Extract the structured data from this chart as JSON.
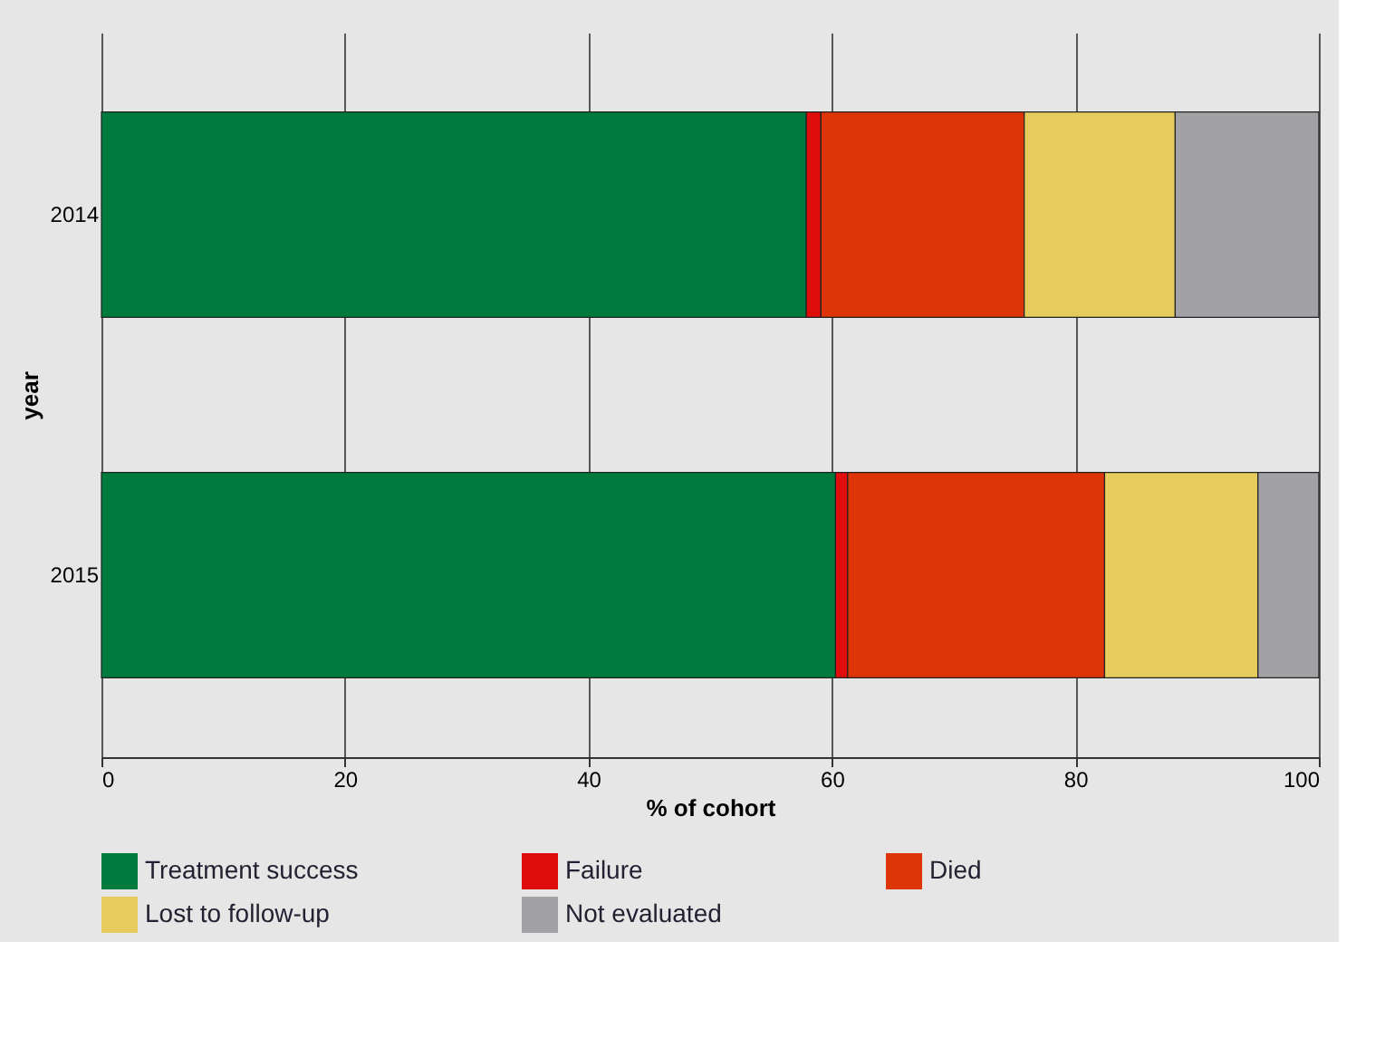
{
  "chart_data": {
    "type": "bar",
    "orientation": "horizontal",
    "stacked": true,
    "categories": [
      "2014",
      "2015"
    ],
    "series": [
      {
        "name": "Treatment success",
        "color": "#007a3d",
        "values": [
          57.9,
          60.3
        ]
      },
      {
        "name": "Failure",
        "color": "#e00d0d",
        "values": [
          1.2,
          1.0
        ]
      },
      {
        "name": "Died",
        "color": "#de3508",
        "values": [
          16.7,
          21.1
        ]
      },
      {
        "name": "Lost to follow-up",
        "color": "#e5cc5c",
        "values": [
          12.4,
          12.6
        ]
      },
      {
        "name": "Not evaluated",
        "color": "#a2a2a6",
        "values": [
          11.8,
          5.0
        ]
      }
    ],
    "xlabel": "% of cohort",
    "ylabel": "year",
    "xlim": [
      0,
      100
    ],
    "xticks": [
      0,
      20,
      40,
      60,
      80,
      100
    ],
    "grid": "x",
    "legend": "bottom"
  }
}
